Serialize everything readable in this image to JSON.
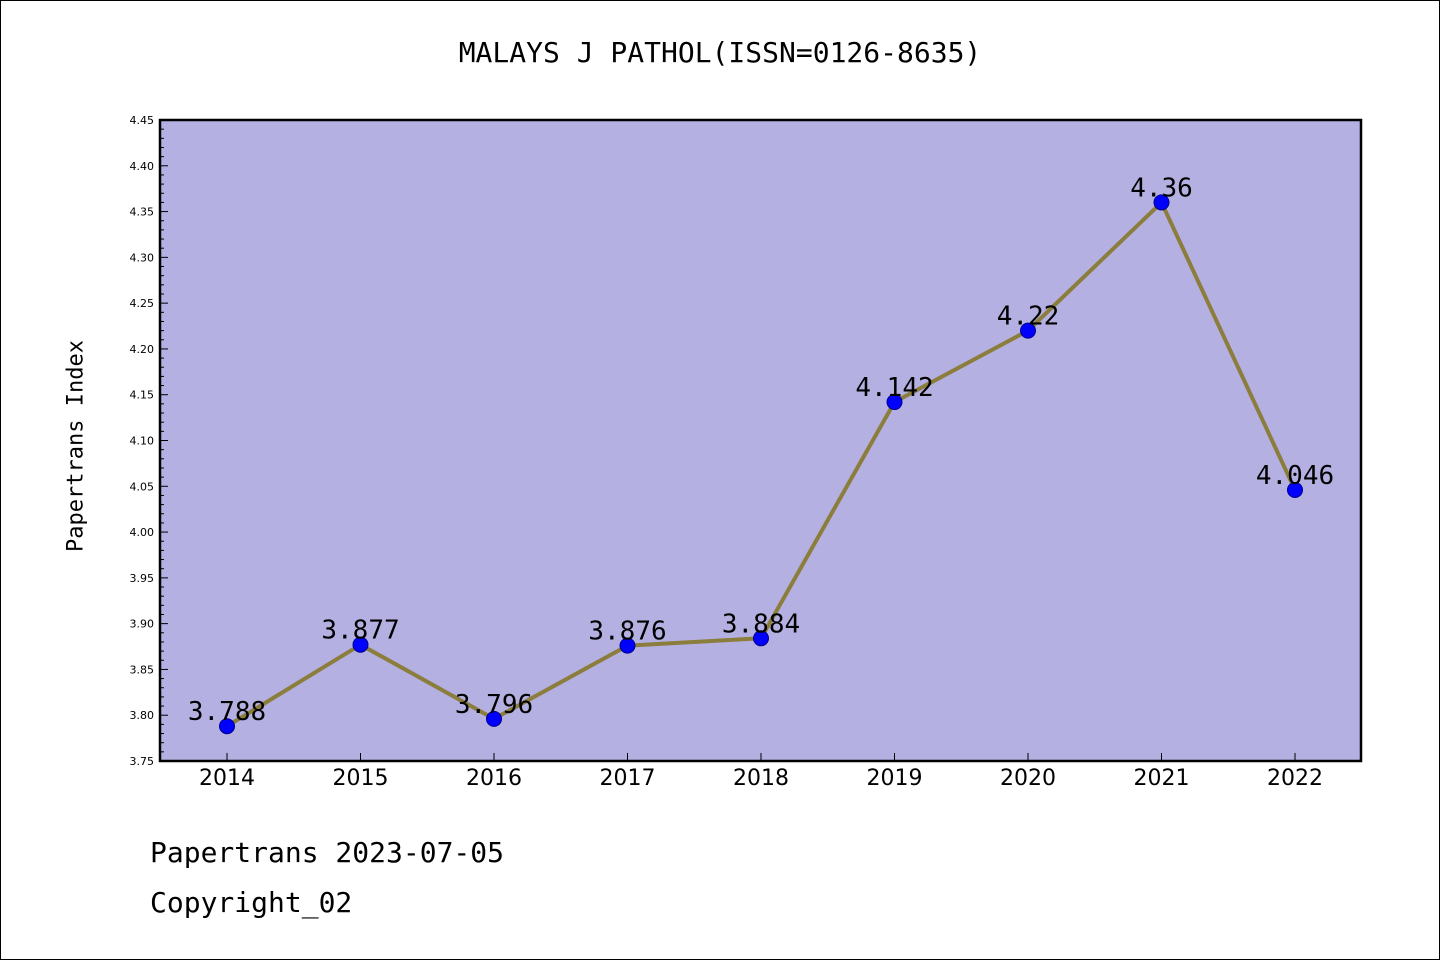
{
  "header": {
    "title": "MALAYS J PATHOL(ISSN=0126-8635)"
  },
  "footer": {
    "line1": "Papertrans 2023-07-05",
    "line2": "Copyright_02"
  },
  "colors": {
    "plot_bg": "#b5b0e2",
    "line": "#8b7d3c",
    "marker": "#0000ff"
  },
  "chart_data": {
    "type": "line",
    "title": "MALAYS J PATHOL(ISSN=0126-8635)",
    "ylabel": "Papertrans Index",
    "xlabel": "",
    "categories": [
      "2014",
      "2015",
      "2016",
      "2017",
      "2018",
      "2019",
      "2020",
      "2021",
      "2022"
    ],
    "values": [
      3.788,
      3.877,
      3.796,
      3.876,
      3.884,
      4.142,
      4.22,
      4.36,
      4.046
    ],
    "data_labels": [
      "3.788",
      "3.877",
      "3.796",
      "3.876",
      "3.884",
      "4.142",
      "4.22",
      "4.36",
      "4.046"
    ],
    "ylim": [
      3.75,
      4.45
    ],
    "yticks": [
      "3.75",
      "3.80",
      "3.85",
      "3.90",
      "3.95",
      "4.00",
      "4.05",
      "4.10",
      "4.15",
      "4.20",
      "4.25",
      "4.30",
      "4.35",
      "4.40",
      "4.45"
    ],
    "grid": false,
    "legend": "none"
  }
}
